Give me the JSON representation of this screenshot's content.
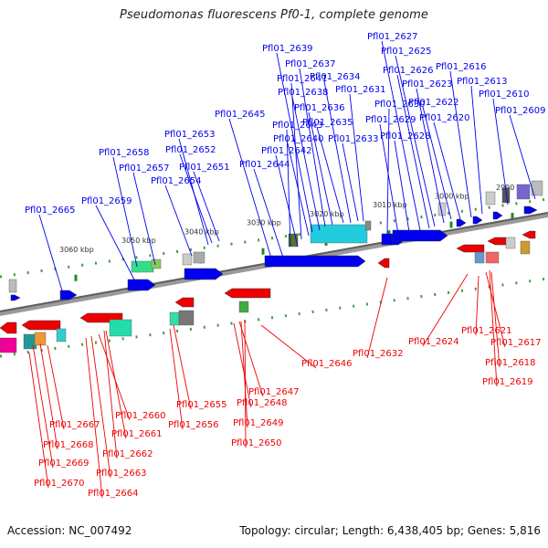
{
  "title": "Pseudomonas fluorescens Pf0-1, complete genome",
  "accession": "Accession: NC_007492",
  "topology": "Topology: circular; Length: 6,438,405 bp; Genes: 5,816",
  "colors": {
    "plus_strand": "#0000ee",
    "minus_strand": "#ee0000",
    "ticks": "#228b22",
    "backbone": "#777777"
  },
  "ruler_labels": [
    "3060 kbp",
    "3050 kbp",
    "3040 kbp",
    "3030 kbp",
    "3020 kbp",
    "3010 kbp",
    "3000 kbp",
    "2990 kbp"
  ],
  "plus_genes": [
    "Pfl01_2665",
    "Pfl01_2659",
    "Pfl01_2658",
    "Pfl01_2657",
    "Pfl01_2654",
    "Pfl01_2653",
    "Pfl01_2652",
    "Pfl01_2651",
    "Pfl01_2645",
    "Pfl01_2644",
    "Pfl01_2643",
    "Pfl01_2642",
    "Pfl01_2641",
    "Pfl01_2640",
    "Pfl01_2639",
    "Pfl01_2638",
    "Pfl01_2637",
    "Pfl01_2636",
    "Pfl01_2635",
    "Pfl01_2634",
    "Pfl01_2633",
    "Pfl01_2631",
    "Pfl01_2630",
    "Pfl01_2629",
    "Pfl01_2628",
    "Pfl01_2627",
    "Pfl01_2626",
    "Pfl01_2625",
    "Pfl01_2623",
    "Pfl01_2622",
    "Pfl01_2620",
    "Pfl01_2616",
    "Pfl01_2613",
    "Pfl01_2610",
    "Pfl01_2609"
  ],
  "minus_genes": [
    "Pfl01_2667",
    "Pfl01_2668",
    "Pfl01_2669",
    "Pfl01_2670",
    "Pfl01_2660",
    "Pfl01_2661",
    "Pfl01_2662",
    "Pfl01_2663",
    "Pfl01_2664",
    "Pfl01_2655",
    "Pfl01_2656",
    "Pfl01_2647",
    "Pfl01_2648",
    "Pfl01_2649",
    "Pfl01_2650",
    "Pfl01_2646",
    "Pfl01_2632",
    "Pfl01_2624",
    "Pfl01_2621",
    "Pfl01_2617",
    "Pfl01_2618",
    "Pfl01_2619"
  ]
}
